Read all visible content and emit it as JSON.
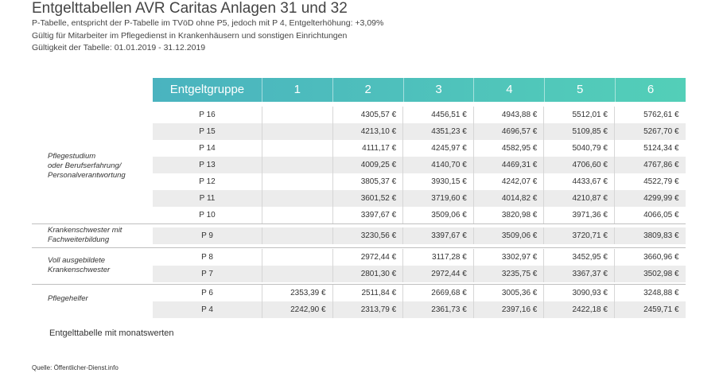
{
  "title": "Entgelttabellen AVR Caritas Anlagen 31 und 32",
  "subtitle_lines": [
    "P-Tabelle, entspricht der P-Tabelle im TVöD ohne P5, jedoch mit P 4, Entgelterhöhung: +3,09%",
    "Gültig für Mitarbeiter im Pflegedienst in Krankenhäusern und sonstigen Einrichtungen",
    "Gültigkeit der Tabelle: 01.01.2019 - 31.12.2019"
  ],
  "table": {
    "header": [
      "Entgeltgruppe",
      "1",
      "2",
      "3",
      "4",
      "5",
      "6"
    ],
    "rows": [
      {
        "group": "P 16",
        "values": [
          "",
          "4305,57 €",
          "4456,51 €",
          "4943,88 €",
          "5512,01 €",
          "5762,61 €"
        ]
      },
      {
        "group": "P 15",
        "values": [
          "",
          "4213,10 €",
          "4351,23 €",
          "4696,57 €",
          "5109,85 €",
          "5267,70 €"
        ]
      },
      {
        "group": "P 14",
        "values": [
          "",
          "4111,17 €",
          "4245,97 €",
          "4582,95 €",
          "5040,79 €",
          "5124,34 €"
        ]
      },
      {
        "group": "P 13",
        "values": [
          "",
          "4009,25 €",
          "4140,70 €",
          "4469,31 €",
          "4706,60 €",
          "4767,86 €"
        ]
      },
      {
        "group": "P 12",
        "values": [
          "",
          "3805,37 €",
          "3930,15 €",
          "4242,07 €",
          "4433,67 €",
          "4522,79 €"
        ]
      },
      {
        "group": "P 11",
        "values": [
          "",
          "3601,52 €",
          "3719,60 €",
          "4014,82 €",
          "4210,87 €",
          "4299,99 €"
        ]
      },
      {
        "group": "P 10",
        "values": [
          "",
          "3397,67 €",
          "3509,06 €",
          "3820,98 €",
          "3971,36 €",
          "4066,05 €"
        ]
      },
      {
        "group": "P 9",
        "values": [
          "",
          "3230,56 €",
          "3397,67 €",
          "3509,06 €",
          "3720,71 €",
          "3809,83 €"
        ]
      },
      {
        "group": "P 8",
        "values": [
          "",
          "2972,44 €",
          "3117,28 €",
          "3302,97 €",
          "3452,95 €",
          "3660,96 €"
        ]
      },
      {
        "group": "P 7",
        "values": [
          "",
          "2801,30 €",
          "2972,44 €",
          "3235,75 €",
          "3367,37 €",
          "3502,98 €"
        ]
      },
      {
        "group": "P 6",
        "values": [
          "2353,39 €",
          "2511,84 €",
          "2669,68 €",
          "3005,36 €",
          "3090,93 €",
          "3248,88 €"
        ]
      },
      {
        "group": "P 4",
        "values": [
          "2242,90 €",
          "2313,79 €",
          "2361,73 €",
          "2397,16 €",
          "2422,18 €",
          "2459,71 €"
        ]
      }
    ],
    "category_labels": [
      {
        "lines": [
          "Pflegestudium",
          "oder Berufserfahrung/",
          "Personalverantwortung"
        ]
      },
      {
        "lines": [
          "Krankenschwester mit",
          "Fachweiterbildung"
        ]
      },
      {
        "lines": [
          "Voll ausgebildete",
          "Krankenschwester"
        ]
      },
      {
        "lines": [
          "Pflegehelfer"
        ]
      }
    ]
  },
  "caption": "Entgelttabelle mit monatswerten",
  "source": "Quelle: Öffentlicher-Dienst.info"
}
